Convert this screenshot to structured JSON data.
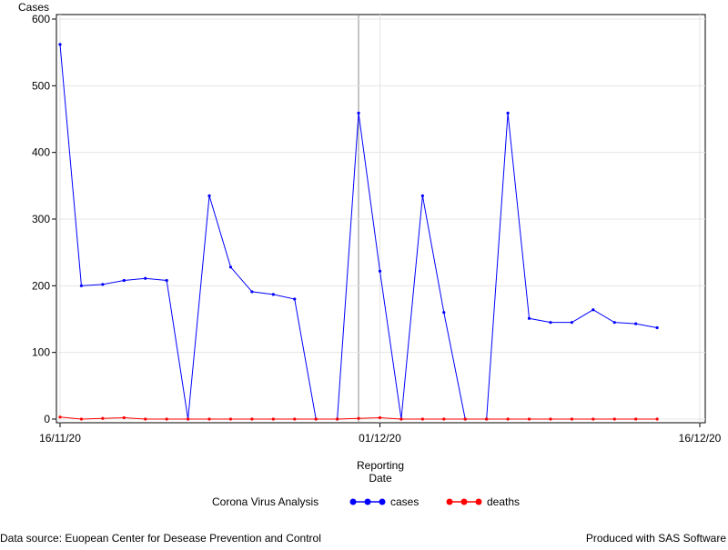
{
  "chart_data": {
    "type": "line",
    "y_label": "Cases",
    "x_label": [
      "Reporting",
      "Date"
    ],
    "legend_title": "Corona Virus Analysis",
    "footnote_left": "Data source: Euopean Center for Desease Prevention and Control",
    "footnote_right": "Produced with SAS Software",
    "x": [
      "2020-11-16",
      "2020-11-17",
      "2020-11-18",
      "2020-11-19",
      "2020-11-20",
      "2020-11-21",
      "2020-11-22",
      "2020-11-23",
      "2020-11-24",
      "2020-11-25",
      "2020-11-26",
      "2020-11-27",
      "2020-11-28",
      "2020-11-29",
      "2020-11-30",
      "2020-12-01",
      "2020-12-02",
      "2020-12-03",
      "2020-12-04",
      "2020-12-05",
      "2020-12-06",
      "2020-12-07",
      "2020-12-08",
      "2020-12-09",
      "2020-12-10",
      "2020-12-11",
      "2020-12-12",
      "2020-12-13",
      "2020-12-14"
    ],
    "series": [
      {
        "name": "cases",
        "color": "#0000ff",
        "values": [
          562,
          200,
          202,
          208,
          211,
          208,
          0,
          335,
          228,
          191,
          187,
          180,
          0,
          0,
          459,
          222,
          0,
          335,
          160,
          0,
          0,
          459,
          151,
          145,
          145,
          164,
          145,
          143,
          137
        ]
      },
      {
        "name": "deaths",
        "color": "#ff0000",
        "values": [
          3,
          0,
          1,
          2,
          0,
          0,
          0,
          0,
          0,
          0,
          0,
          0,
          0,
          0,
          1,
          2,
          0,
          0,
          0,
          0,
          0,
          0,
          0,
          0,
          0,
          0,
          0,
          0,
          0
        ]
      }
    ],
    "xlim": [
      "2020-11-16",
      "2020-12-16"
    ],
    "xticks": [
      {
        "value": "2020-11-16",
        "label": "16/11/20"
      },
      {
        "value": "2020-12-01",
        "label": "01/12/20"
      },
      {
        "value": "2020-12-16",
        "label": "16/12/20"
      }
    ],
    "ylim": [
      0,
      600
    ],
    "yticks": [
      0,
      100,
      200,
      300,
      400,
      500,
      600
    ],
    "grid": true
  }
}
